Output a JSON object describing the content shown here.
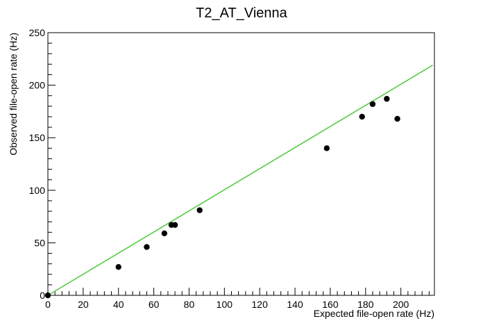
{
  "chart_data": {
    "type": "scatter",
    "title": "T2_AT_Vienna",
    "xlabel": "Expected file-open rate (Hz)",
    "ylabel": "Observed file-open rate (Hz)",
    "xlim": [
      0,
      219
    ],
    "ylim": [
      0,
      250
    ],
    "x_ticks": [
      0,
      20,
      40,
      60,
      80,
      100,
      120,
      140,
      160,
      180,
      200
    ],
    "y_ticks": [
      0,
      50,
      100,
      150,
      200,
      250
    ],
    "grid": false,
    "colors": {
      "points": "#000000",
      "fit_line": "#55cc44",
      "axes": "#000000"
    },
    "series": [
      {
        "points": [
          {
            "x": 0,
            "y": 0
          },
          {
            "x": 40,
            "y": 27
          },
          {
            "x": 56,
            "y": 46
          },
          {
            "x": 66,
            "y": 59
          },
          {
            "x": 70,
            "y": 67
          },
          {
            "x": 72,
            "y": 67
          },
          {
            "x": 86,
            "y": 81
          },
          {
            "x": 158,
            "y": 140
          },
          {
            "x": 178,
            "y": 170
          },
          {
            "x": 184,
            "y": 182
          },
          {
            "x": 192,
            "y": 187
          },
          {
            "x": 198,
            "y": 168
          }
        ]
      }
    ],
    "fit_line": {
      "x": [
        0,
        218
      ],
      "y": [
        0,
        219
      ]
    }
  }
}
